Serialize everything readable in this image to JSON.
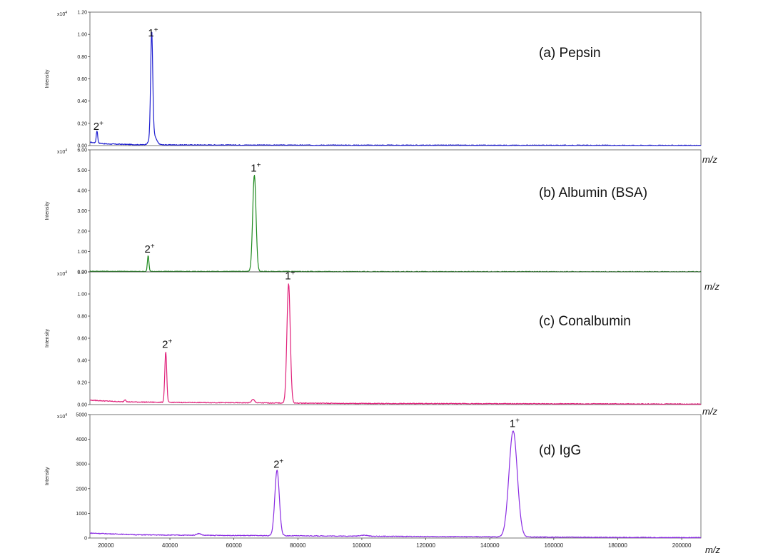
{
  "figure": {
    "x_unit_label": "m/z"
  },
  "chart_data": [
    {
      "type": "line",
      "panel_label": "(a) Pepsin",
      "ylabel": "Intensity",
      "y_multiplier": "x10",
      "y_multiplier_exp": "4",
      "ylim": [
        0,
        1.2
      ],
      "yticks": [
        0,
        0.2,
        0.4,
        0.6,
        0.8,
        1.0,
        1.2
      ],
      "ytick_labels": [
        "0.00",
        "0.20",
        "0.40",
        "0.60",
        "0.80",
        "1.00",
        "1.20"
      ],
      "xlim": [
        15000,
        206000
      ],
      "color": "#1f1fd0",
      "baseline": [
        [
          15000,
          0.03
        ],
        [
          20000,
          0.015
        ],
        [
          30000,
          0.008
        ],
        [
          45000,
          0.006
        ],
        [
          80000,
          0.004
        ],
        [
          120000,
          0.003
        ],
        [
          185000,
          0.002
        ],
        [
          206000,
          0.001
        ]
      ],
      "peaks": [
        {
          "x": 17200,
          "height": 0.11,
          "width": 220
        },
        {
          "x": 34300,
          "height": 0.94,
          "width": 320
        },
        {
          "x": 34700,
          "height": 0.1,
          "width": 900
        }
      ],
      "annotations": [
        {
          "x": 17200,
          "y": 0.11,
          "base": "2",
          "sup": "+"
        },
        {
          "x": 34300,
          "y": 0.95,
          "base": "1",
          "sup": "+"
        }
      ]
    },
    {
      "type": "line",
      "panel_label": "(b) Albumin (BSA)",
      "ylabel": "Intensity",
      "y_multiplier": "x10",
      "y_multiplier_exp": "4",
      "ylim": [
        0,
        6.0
      ],
      "yticks": [
        0,
        1,
        2,
        3,
        4,
        5,
        6
      ],
      "ytick_labels": [
        "0.00",
        "1.00",
        "2.00",
        "3.00",
        "4.00",
        "5.00",
        "6.00"
      ],
      "xlim": [
        15000,
        206000
      ],
      "color": "#1e8a1e",
      "baseline": [
        [
          15000,
          0.03
        ],
        [
          30000,
          0.02
        ],
        [
          60000,
          0.02
        ],
        [
          100000,
          0.01
        ],
        [
          206000,
          0.005
        ]
      ],
      "peaks": [
        {
          "x": 33200,
          "height": 0.78,
          "width": 240
        },
        {
          "x": 66400,
          "height": 4.75,
          "width": 520
        }
      ],
      "annotations": [
        {
          "x": 33200,
          "y": 0.78,
          "base": "2",
          "sup": "+"
        },
        {
          "x": 66400,
          "y": 4.75,
          "base": "1",
          "sup": "+"
        }
      ]
    },
    {
      "type": "line",
      "panel_label": "(c) Conalbumin",
      "ylabel": "Intensity",
      "y_multiplier": "x10",
      "y_multiplier_exp": "4",
      "ylim": [
        0,
        1.2
      ],
      "yticks": [
        0,
        0.2,
        0.4,
        0.6,
        0.8,
        1.0,
        1.2
      ],
      "ytick_labels": [
        "0.00",
        "0.20",
        "0.40",
        "0.60",
        "0.80",
        "1.00",
        "1.20"
      ],
      "xlim": [
        15000,
        206000
      ],
      "color": "#e0207a",
      "baseline": [
        [
          15000,
          0.04
        ],
        [
          25000,
          0.025
        ],
        [
          40000,
          0.02
        ],
        [
          70000,
          0.015
        ],
        [
          100000,
          0.01
        ],
        [
          206000,
          0.005
        ]
      ],
      "peaks": [
        {
          "x": 26000,
          "height": 0.02,
          "width": 300
        },
        {
          "x": 38700,
          "height": 0.46,
          "width": 300
        },
        {
          "x": 66000,
          "height": 0.03,
          "width": 500
        },
        {
          "x": 77100,
          "height": 1.08,
          "width": 520
        }
      ],
      "annotations": [
        {
          "x": 38700,
          "y": 0.48,
          "base": "2",
          "sup": "+"
        },
        {
          "x": 77100,
          "y": 1.1,
          "base": "1",
          "sup": "+"
        }
      ]
    },
    {
      "type": "line",
      "panel_label": "(d) IgG",
      "ylabel": "Intensity",
      "y_multiplier": "x10",
      "y_multiplier_exp": "4",
      "ylim": [
        0,
        5000
      ],
      "yticks": [
        0,
        1000,
        2000,
        3000,
        4000,
        5000
      ],
      "ytick_labels": [
        "0",
        "1000",
        "2000",
        "3000",
        "4000",
        "5000"
      ],
      "xlim": [
        15000,
        206000
      ],
      "xticks": [
        20000,
        40000,
        60000,
        80000,
        100000,
        120000,
        140000,
        160000,
        180000,
        200000
      ],
      "xtick_labels": [
        "20000",
        "40000",
        "60000",
        "80000",
        "100000",
        "120000",
        "140000",
        "160000",
        "180000",
        "200000"
      ],
      "color": "#8a2be2",
      "baseline": [
        [
          15000,
          200
        ],
        [
          30000,
          130
        ],
        [
          50000,
          110
        ],
        [
          80000,
          90
        ],
        [
          120000,
          60
        ],
        [
          170000,
          30
        ],
        [
          206000,
          15
        ]
      ],
      "peaks": [
        {
          "x": 49000,
          "height": 70,
          "width": 700
        },
        {
          "x": 73500,
          "height": 2650,
          "width": 700
        },
        {
          "x": 100500,
          "height": 40,
          "width": 1200
        },
        {
          "x": 147300,
          "height": 4300,
          "width": 1300
        }
      ],
      "annotations": [
        {
          "x": 73500,
          "y": 2700,
          "base": "2",
          "sup": "+"
        },
        {
          "x": 147300,
          "y": 4350,
          "base": "1",
          "sup": "+"
        }
      ]
    }
  ]
}
